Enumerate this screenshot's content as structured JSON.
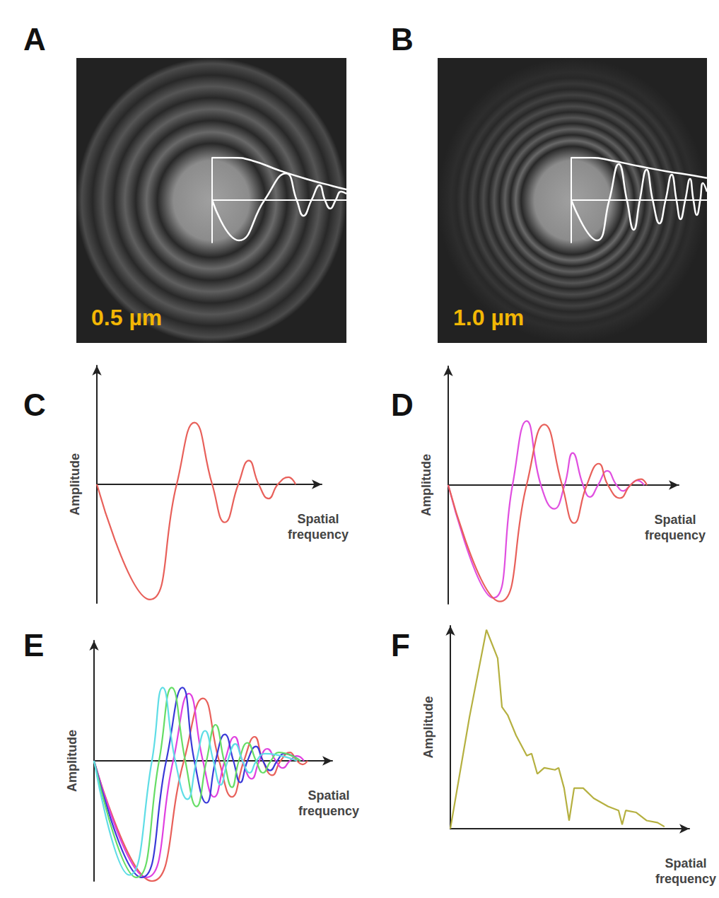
{
  "chart_data": [
    {
      "type": "line",
      "title": "A",
      "annotations": [
        "0.5 µm"
      ],
      "xlim": [
        0,
        10
      ],
      "ylim": [
        -1,
        1
      ],
      "tick_labels": false,
      "grid": false,
      "series": [
        {
          "color": "#ffffff",
          "x": [
            0,
            1.5,
            3,
            5,
            7,
            9,
            10
          ],
          "values": [
            1,
            1,
            0.93,
            0.7,
            0.5,
            0.33,
            0.25
          ]
        },
        {
          "color": "#ffffff",
          "x": [
            0,
            2,
            3.9,
            5.5,
            6.3,
            6.8,
            7.4,
            8,
            8.4,
            8.8,
            9.2,
            9.6,
            10
          ],
          "values": [
            0,
            -0.95,
            0,
            0.63,
            0,
            -0.37,
            0,
            0.35,
            0,
            -0.2,
            0,
            0.2,
            0.15
          ]
        }
      ]
    },
    {
      "type": "line",
      "title": "B",
      "annotations": [
        "1.0 µm"
      ],
      "xlim": [
        0,
        10
      ],
      "ylim": [
        -1,
        1
      ],
      "tick_labels": false,
      "grid": false,
      "series": [
        {
          "color": "#ffffff",
          "x": [
            0,
            1.5,
            3,
            5,
            7,
            9,
            10
          ],
          "values": [
            1,
            1,
            0.93,
            0.8,
            0.68,
            0.58,
            0.52
          ]
        },
        {
          "color": "#ffffff",
          "x": [
            0,
            1.9,
            2.8,
            3.5,
            4.1,
            4.6,
            5.05,
            5.55,
            6.0,
            6.5,
            6.95,
            7.4,
            7.75,
            8.05,
            8.4,
            8.75,
            9.0,
            9.25,
            9.5,
            9.7,
            10
          ],
          "values": [
            0,
            -0.95,
            0,
            0.85,
            0,
            -0.7,
            0,
            0.72,
            0,
            -0.55,
            0,
            0.6,
            0,
            -0.45,
            0,
            0.5,
            0,
            -0.35,
            0,
            0.4,
            0.2
          ]
        }
      ]
    },
    {
      "type": "line",
      "title": "C",
      "xlabel": "Spatial frequency",
      "ylabel": "Amplitude",
      "xlim": [
        0,
        10
      ],
      "ylim": [
        -1,
        1
      ],
      "tick_labels": false,
      "grid": false,
      "series": [
        {
          "color": "#e8605a",
          "x": [
            0,
            2.36,
            3.55,
            4.34,
            5.13,
            5.69,
            6.29,
            6.76,
            7.2,
            7.64,
            8.05,
            8.52,
            8.84
          ],
          "values": [
            0,
            -0.97,
            0,
            0.52,
            0,
            -0.32,
            0,
            0.2,
            0,
            -0.12,
            0,
            0.06,
            0
          ]
        }
      ]
    },
    {
      "type": "line",
      "title": "D",
      "xlabel": "Spatial frequency",
      "ylabel": "Amplitude",
      "xlim": [
        0,
        10
      ],
      "ylim": [
        -1,
        1
      ],
      "tick_labels": false,
      "grid": false,
      "series": [
        {
          "color": "#e04fe0",
          "x": [
            0,
            1.96,
            2.79,
            3.4,
            4.02,
            4.6,
            5.05,
            5.4,
            5.85,
            6.15,
            6.5,
            6.9,
            7.3,
            7.6,
            7.9,
            8.2,
            8.5
          ],
          "values": [
            0,
            -0.95,
            0,
            0.54,
            0,
            -0.2,
            0,
            0.27,
            0,
            -0.1,
            0,
            0.12,
            0,
            -0.05,
            0,
            0.04,
            0
          ]
        },
        {
          "color": "#e8605a",
          "x": [
            0,
            2.24,
            3.4,
            4.17,
            4.94,
            5.46,
            6.01,
            6.53,
            6.93,
            7.45,
            7.91,
            8.37,
            8.62
          ],
          "values": [
            0,
            -0.98,
            0,
            0.51,
            0,
            -0.32,
            0,
            0.18,
            0,
            -0.11,
            0,
            0.05,
            0
          ]
        }
      ]
    },
    {
      "type": "line",
      "title": "E",
      "xlabel": "Spatial frequency",
      "ylabel": "Amplitude",
      "xlim": [
        0,
        10
      ],
      "ylim": [
        -1,
        1
      ],
      "tick_labels": false,
      "grid": false,
      "series": [
        {
          "color": "#e8605a",
          "x": [
            0,
            2.43,
            3.77,
            4.57,
            5.25,
            5.79,
            6.29,
            6.74,
            7.09,
            7.48,
            7.83,
            8.22,
            8.52,
            8.75,
            8.96
          ],
          "values": [
            0,
            -1.0,
            0,
            0.52,
            0,
            -0.3,
            0,
            0.2,
            0,
            -0.12,
            0,
            0.07,
            0,
            -0.03,
            0
          ]
        },
        {
          "color": "#e040e0",
          "x": [
            0,
            2.2,
            3.32,
            3.98,
            4.57,
            5.04,
            5.49,
            5.9,
            6.23,
            6.62,
            6.94,
            7.27,
            7.63,
            7.92,
            8.22,
            8.52,
            8.81
          ],
          "values": [
            0,
            -0.97,
            0,
            0.56,
            0,
            -0.3,
            0,
            0.2,
            0,
            -0.15,
            0,
            0.1,
            0,
            -0.06,
            0,
            0.04,
            0
          ]
        },
        {
          "color": "#3a3ad8",
          "x": [
            0,
            1.99,
            3.03,
            3.71,
            4.21,
            4.72,
            5.1,
            5.49,
            5.85,
            6.14,
            6.44,
            6.8,
            7.09,
            7.39,
            7.69,
            7.98,
            8.66
          ],
          "values": [
            0,
            -0.97,
            0,
            0.61,
            0,
            -0.35,
            0,
            0.22,
            0,
            -0.18,
            0,
            0.12,
            0,
            -0.08,
            0,
            0.06,
            0
          ]
        },
        {
          "color": "#66dd66",
          "x": [
            0,
            1.78,
            2.73,
            3.26,
            3.83,
            4.3,
            4.72,
            5.1,
            5.46,
            5.79,
            6.08,
            6.44,
            6.8,
            7.09,
            7.42,
            7.77,
            8.66
          ],
          "values": [
            0,
            -0.97,
            0,
            0.61,
            0,
            -0.38,
            0,
            0.3,
            0,
            -0.22,
            0,
            0.15,
            0,
            -0.1,
            0,
            0.07,
            0
          ]
        },
        {
          "color": "#5fdde6",
          "x": [
            0,
            1.48,
            2.43,
            2.88,
            3.41,
            3.92,
            4.3,
            4.66,
            5.01,
            5.31,
            5.61,
            5.93,
            6.23,
            6.53,
            6.82,
            7.18,
            8.52
          ],
          "values": [
            0,
            -0.95,
            0,
            0.61,
            0,
            -0.32,
            0,
            0.25,
            0,
            -0.2,
            0,
            0.14,
            0,
            -0.1,
            0,
            0.06,
            0
          ]
        }
      ]
    },
    {
      "type": "line",
      "title": "F",
      "xlabel": "Spatial frequency",
      "ylabel": "Amplitude",
      "xlim": [
        0,
        10
      ],
      "ylim": [
        0,
        1
      ],
      "tick_labels": false,
      "grid": false,
      "series": [
        {
          "color": "#b5b040",
          "x": [
            0,
            0.8,
            1.51,
            1.98,
            2.16,
            2.4,
            2.75,
            3.2,
            3.4,
            3.64,
            3.93,
            4.38,
            4.53,
            4.76,
            4.97,
            5.18,
            5.56,
            6.0,
            6.6,
            7.04,
            7.19,
            7.34,
            7.78,
            8.22,
            8.67,
            8.96
          ],
          "values": [
            0,
            0.55,
            0.98,
            0.84,
            0.6,
            0.56,
            0.46,
            0.36,
            0.37,
            0.27,
            0.3,
            0.29,
            0.3,
            0.2,
            0.04,
            0.2,
            0.2,
            0.15,
            0.11,
            0.09,
            0.02,
            0.09,
            0.08,
            0.04,
            0.03,
            0.01
          ]
        }
      ]
    }
  ]
}
